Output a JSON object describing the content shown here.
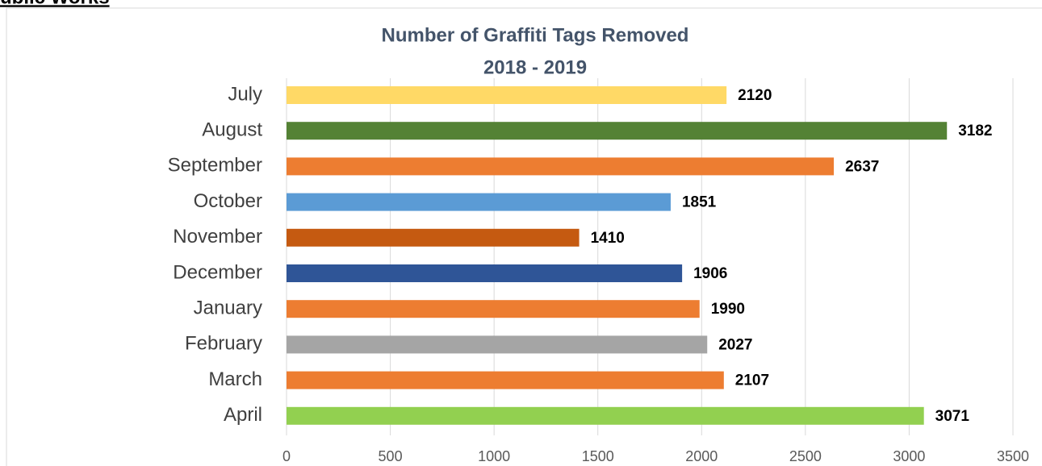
{
  "header": "ublic Works",
  "chart_data": {
    "type": "barh",
    "title": "Number of Graffiti Tags Removed",
    "subtitle": "2018 - 2019",
    "categories": [
      "July",
      "August",
      "September",
      "October",
      "November",
      "December",
      "January",
      "February",
      "March",
      "April"
    ],
    "values": [
      2120,
      3182,
      2637,
      1851,
      1410,
      1906,
      1990,
      2027,
      2107,
      3071
    ],
    "colors": [
      "#ffd966",
      "#548235",
      "#ed7d31",
      "#5b9bd5",
      "#c55a11",
      "#2f5597",
      "#ed7d31",
      "#a5a5a5",
      "#ed7d31",
      "#92d050"
    ],
    "xlim": [
      0,
      3500
    ],
    "xticks": [
      0,
      500,
      1000,
      1500,
      2000,
      2500,
      3000,
      3500
    ],
    "grid": true
  }
}
